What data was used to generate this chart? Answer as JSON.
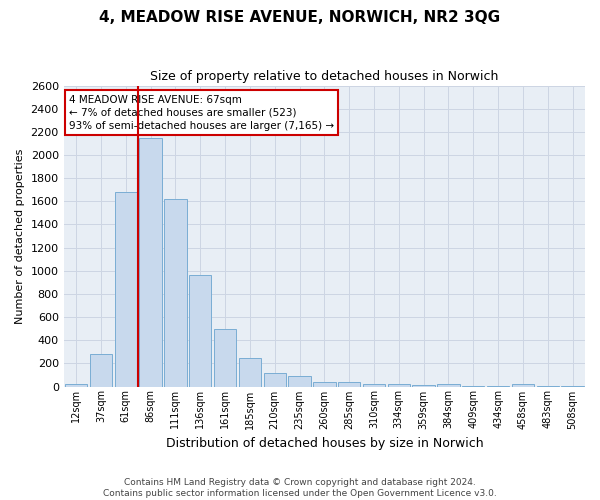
{
  "title": "4, MEADOW RISE AVENUE, NORWICH, NR2 3QG",
  "subtitle": "Size of property relative to detached houses in Norwich",
  "xlabel": "Distribution of detached houses by size in Norwich",
  "ylabel": "Number of detached properties",
  "footer_line1": "Contains HM Land Registry data © Crown copyright and database right 2024.",
  "footer_line2": "Contains public sector information licensed under the Open Government Licence v3.0.",
  "annotation_line1": "4 MEADOW RISE AVENUE: 67sqm",
  "annotation_line2": "← 7% of detached houses are smaller (523)",
  "annotation_line3": "93% of semi-detached houses are larger (7,165) →",
  "bar_color": "#c8d9ed",
  "bar_edge_color": "#7aadd4",
  "vline_color": "#cc0000",
  "annotation_box_facecolor": "#ffffff",
  "annotation_box_edgecolor": "#cc0000",
  "categories": [
    "12sqm",
    "37sqm",
    "61sqm",
    "86sqm",
    "111sqm",
    "136sqm",
    "161sqm",
    "185sqm",
    "210sqm",
    "235sqm",
    "260sqm",
    "285sqm",
    "310sqm",
    "334sqm",
    "359sqm",
    "384sqm",
    "409sqm",
    "434sqm",
    "458sqm",
    "483sqm",
    "508sqm"
  ],
  "values": [
    20,
    280,
    1680,
    2150,
    1620,
    960,
    500,
    245,
    120,
    90,
    40,
    38,
    25,
    18,
    12,
    18,
    8,
    8,
    18,
    8,
    8
  ],
  "vline_x_index": 2.5,
  "ylim": [
    0,
    2600
  ],
  "yticks": [
    0,
    200,
    400,
    600,
    800,
    1000,
    1200,
    1400,
    1600,
    1800,
    2000,
    2200,
    2400,
    2600
  ],
  "grid_color": "#cdd5e3",
  "background_color": "#e8eef5",
  "title_fontsize": 11,
  "subtitle_fontsize": 9,
  "ylabel_fontsize": 8,
  "xlabel_fontsize": 9,
  "tick_fontsize": 8,
  "xtick_fontsize": 7,
  "footer_fontsize": 6.5
}
